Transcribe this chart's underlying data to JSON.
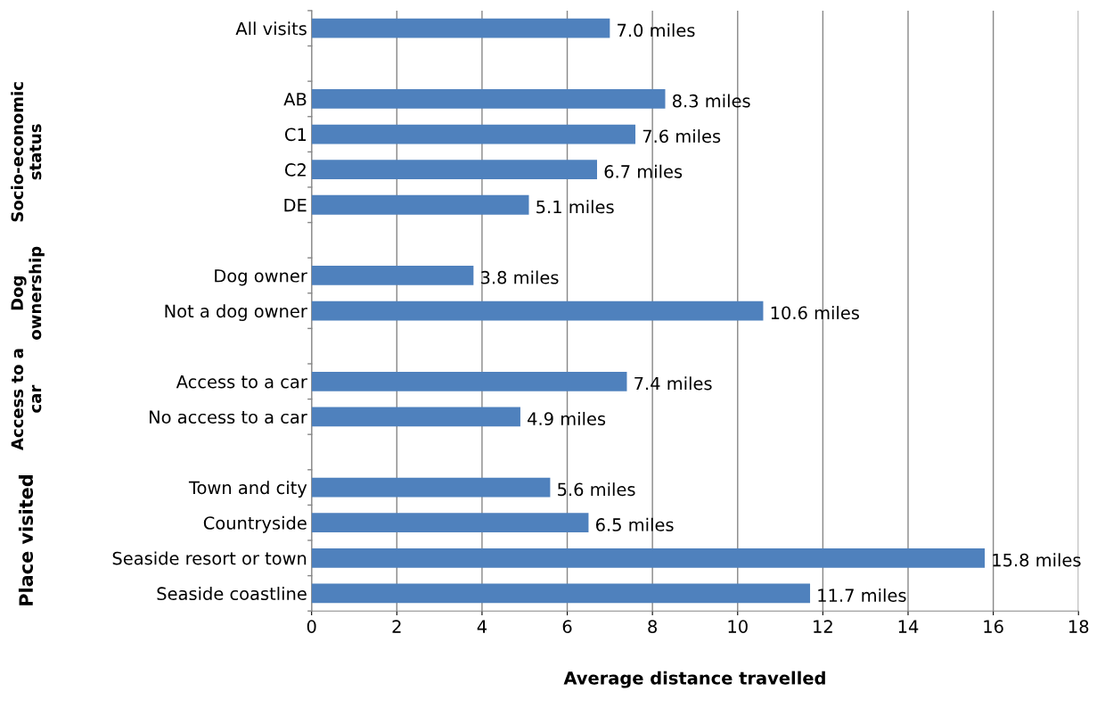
{
  "chart_data": {
    "type": "bar",
    "orientation": "horizontal",
    "xlabel": "Average distance travelled",
    "categories": [
      "All visits",
      null,
      "AB",
      "C1",
      "C2",
      "DE",
      null,
      "Dog owner",
      "Not a dog owner",
      null,
      "Access to a car",
      "No access to a car",
      null,
      "Town and city",
      "Countryside",
      "Seaside resort or town",
      "Seaside coastline"
    ],
    "values": [
      7.0,
      null,
      8.3,
      7.6,
      6.7,
      5.1,
      null,
      3.8,
      10.6,
      null,
      7.4,
      4.9,
      null,
      5.6,
      6.5,
      15.8,
      11.7
    ],
    "value_labels": [
      "7.0 miles",
      null,
      "8.3 miles",
      "7.6 miles",
      "6.7 miles",
      "5.1 miles",
      null,
      "3.8 miles",
      "10.6 miles",
      null,
      "7.4 miles",
      "4.9 miles",
      null,
      "5.6 miles",
      "6.5 miles",
      "15.8 miles",
      "11.7 miles"
    ],
    "color": "#4f81bd",
    "xlim": [
      0,
      18
    ],
    "xticks": [
      0,
      2,
      4,
      6,
      8,
      10,
      12,
      14,
      16,
      18
    ],
    "grid": "x",
    "legend": false,
    "annotations": [
      "Socio-economic\nstatus",
      "Dog\nownership",
      "Access to a\ncar",
      "Place visited"
    ]
  }
}
